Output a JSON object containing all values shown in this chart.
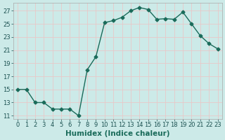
{
  "x": [
    0,
    1,
    2,
    3,
    4,
    5,
    6,
    7,
    8,
    9,
    10,
    11,
    12,
    13,
    14,
    15,
    16,
    17,
    18,
    19,
    20,
    21,
    22,
    23
  ],
  "y": [
    15,
    15,
    13,
    13,
    12,
    12,
    12,
    11,
    18,
    20,
    25.2,
    25.5,
    26,
    27,
    27.5,
    27.2,
    25.7,
    25.8,
    25.7,
    26.8,
    25.0,
    23.2,
    22.0,
    21.2
  ],
  "line_color": "#1a6b5a",
  "marker": "D",
  "marker_size": 2.5,
  "bg_color": "#cceae8",
  "grid_color": "#e8c8c8",
  "xlabel": "Humidex (Indice chaleur)",
  "xlabel_fontsize": 7.5,
  "ylim": [
    10.5,
    28.2
  ],
  "xlim": [
    -0.5,
    23.5
  ],
  "yticks": [
    11,
    13,
    15,
    17,
    19,
    21,
    23,
    25,
    27
  ],
  "xtick_labels": [
    "0",
    "1",
    "2",
    "3",
    "4",
    "5",
    "6",
    "7",
    "8",
    "9",
    "10",
    "11",
    "12",
    "13",
    "14",
    "15",
    "16",
    "17",
    "18",
    "19",
    "20",
    "21",
    "22",
    "23"
  ],
  "tick_fontsize": 6.0,
  "linewidth": 1.0
}
